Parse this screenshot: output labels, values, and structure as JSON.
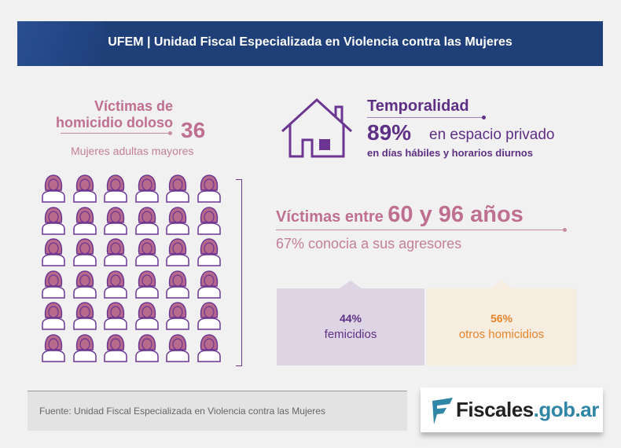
{
  "header": {
    "title": "UFEM | Unidad Fiscal Especializada en Violencia contra las Mujeres"
  },
  "victims": {
    "title_line1": "Víctimas de",
    "title_line2": "homicidio doloso",
    "count": "36",
    "subtitle": "Mujeres adultas mayores",
    "icon_count": 36,
    "icon": "woman-icon"
  },
  "temporality": {
    "title": "Temporalidad",
    "percent": "89%",
    "place": "en espacio privado",
    "detail": "en días hábiles y horarios diurnos",
    "icon": "house-icon"
  },
  "ages": {
    "prefix": "Víctimas entre",
    "range": "60 y 96 años",
    "known": "67% conocia a sus agresores"
  },
  "breakdown": [
    {
      "percent": "44%",
      "label": "femicidios"
    },
    {
      "percent": "56%",
      "label": "otros homicidios"
    }
  ],
  "footer": {
    "source": "Fuente: Unidad Fiscal Especializada en Violencia contra las Mujeres"
  },
  "logo": {
    "name": "Fiscales",
    "domain": ".gob.ar"
  },
  "colors": {
    "header": "#1f3f78",
    "pink": "#bf6f8f",
    "purple": "#5e2f84",
    "orange": "#e6852a"
  }
}
